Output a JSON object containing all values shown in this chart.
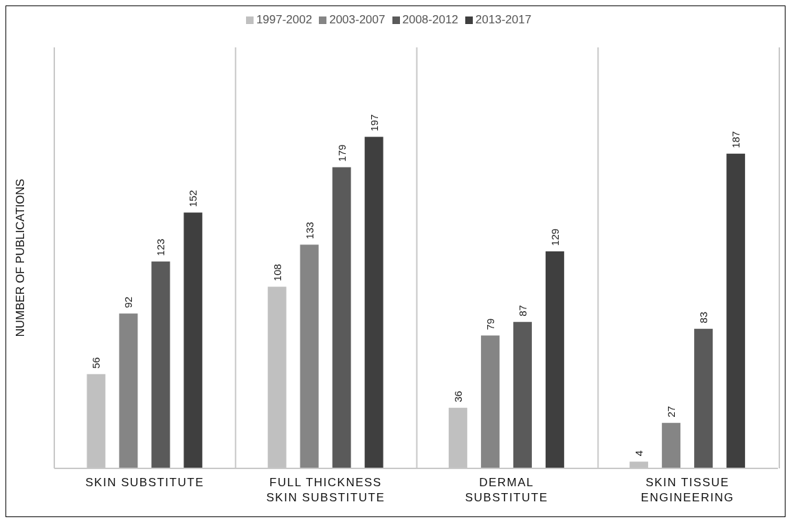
{
  "chart_data": {
    "type": "bar",
    "ylabel": "NUMBER OF PUBLICATIONS",
    "categories": [
      "SKIN SUBSTITUTE",
      "FULL THICKNESS SKIN SUBSTITUTE",
      "DERMAL SUBSTITUTE",
      "SKIN TISSUE ENGINEERING"
    ],
    "series": [
      {
        "name": "1997-2002",
        "color": "#c0c0c0",
        "values": [
          56,
          108,
          36,
          4
        ]
      },
      {
        "name": "2003-2007",
        "color": "#858585",
        "values": [
          92,
          133,
          79,
          27
        ]
      },
      {
        "name": "2008-2012",
        "color": "#5a5a5a",
        "values": [
          123,
          179,
          87,
          83
        ]
      },
      {
        "name": "2013-2017",
        "color": "#3f3f3f",
        "values": [
          152,
          197,
          129,
          187
        ]
      }
    ],
    "data_labels": true,
    "grid": "x",
    "legend": "top"
  }
}
